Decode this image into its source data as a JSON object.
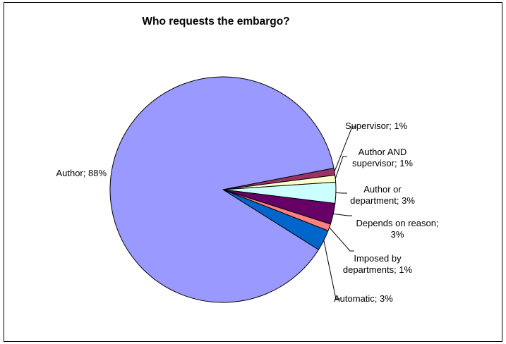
{
  "chart_data": {
    "type": "pie",
    "title": "Who requests the embargo?",
    "slices": [
      {
        "label": "Supervisor",
        "value": 1,
        "text": "Supervisor; 1%",
        "color": "#993366"
      },
      {
        "label": "Author AND supervisor",
        "value": 1,
        "text": "Author AND supervisor; 1%",
        "color": "#ffffcc"
      },
      {
        "label": "Author or department",
        "value": 3,
        "text": "Author or department; 3%",
        "color": "#ccffff"
      },
      {
        "label": "Depends on reason",
        "value": 3,
        "text": "Depends on reason; 3%",
        "color": "#660066"
      },
      {
        "label": "Imposed by departments",
        "value": 1,
        "text": "Imposed by departments; 1%",
        "color": "#ff8080"
      },
      {
        "label": "Automatic",
        "value": 3,
        "text": "Automatic; 3%",
        "color": "#0066cc"
      },
      {
        "label": "Author",
        "value": 88,
        "text": "Author; 88%",
        "color": "#9999ff"
      }
    ]
  }
}
